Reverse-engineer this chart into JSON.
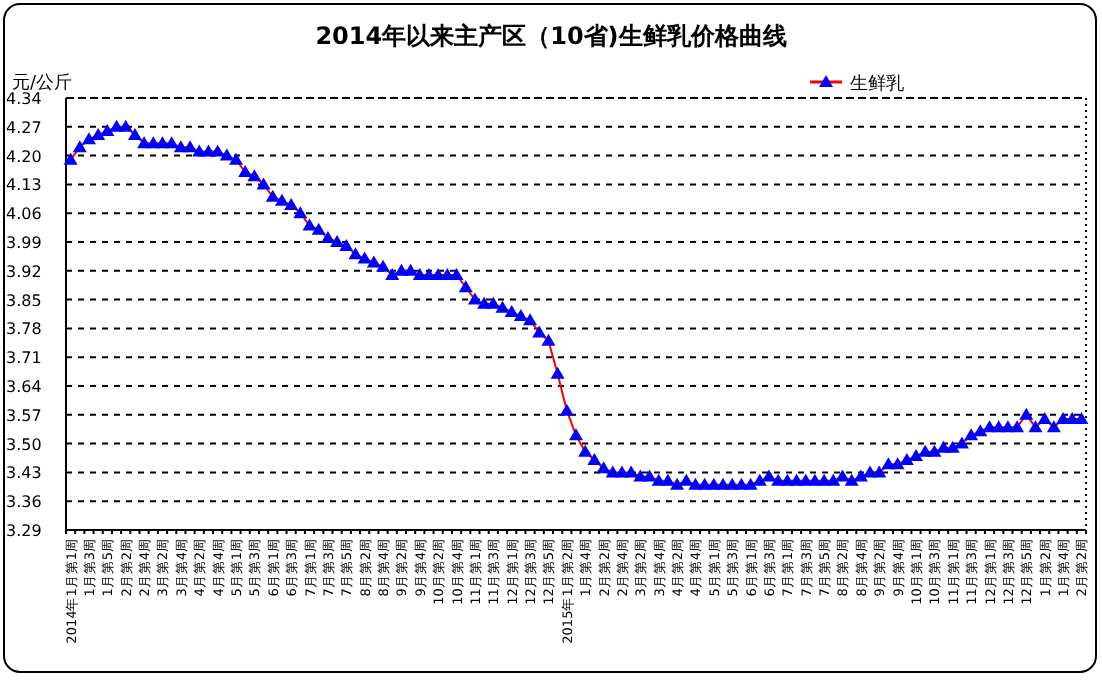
{
  "chart_data": {
    "type": "line",
    "title": "2014年以来主产区（10省)生鲜乳价格曲线",
    "ylabel": "元/公斤",
    "categories": [
      "2014年1月第1周",
      null,
      "1月第3周",
      null,
      "1月第5周",
      null,
      "2月第2周",
      null,
      "2月第4周",
      null,
      "3月第2周",
      null,
      "3月第4周",
      null,
      "4月第2周",
      null,
      "4月第4周",
      null,
      "5月第1周",
      null,
      "5月第3周",
      null,
      "6月第1周",
      null,
      "6月第3周",
      null,
      "7月第1周",
      null,
      "7月第3周",
      null,
      "7月第5周",
      null,
      "8月第2周",
      null,
      "8月第4周",
      null,
      "9月第2周",
      null,
      "9月第4周",
      null,
      "10月第2周",
      null,
      "10月第4周",
      null,
      "11月第1周",
      null,
      "11月第3周",
      null,
      "12月第1周",
      null,
      "12月第3周",
      null,
      "12月第5周",
      null,
      "2015年1月第2周",
      null,
      "1月第4周",
      null,
      "2月第2周",
      null,
      "2月第4周",
      null,
      "3月第2周",
      null,
      "3月第4周",
      null,
      "4月第2周",
      null,
      "4月第4周",
      null,
      "5月第1周",
      null,
      "5月第3周",
      null,
      "6月第1周",
      null,
      "6月第3周",
      null,
      "7月第1周",
      null,
      "7月第3周",
      null,
      "7月第5周",
      null,
      "8月第2周",
      null,
      "8月第4周",
      null,
      "9月第2周",
      null,
      "9月第4周",
      null,
      "10月第1周",
      null,
      "10月第3周",
      null,
      "11月第1周",
      null,
      "11月第3周",
      null,
      "12月第1周",
      null,
      "12月第3周",
      null,
      "12月第5周",
      null,
      "1月第2周",
      null,
      "1月第4周",
      null,
      "2月第2周"
    ],
    "series": [
      {
        "name": "生鲜乳",
        "color": "#0000ff",
        "values": [
          4.19,
          4.22,
          4.24,
          4.25,
          4.26,
          4.27,
          4.27,
          4.25,
          4.23,
          4.23,
          4.23,
          4.23,
          4.22,
          4.22,
          4.21,
          4.21,
          4.21,
          4.2,
          4.19,
          4.16,
          4.15,
          4.13,
          4.1,
          4.09,
          4.08,
          4.06,
          4.03,
          4.02,
          4.0,
          3.99,
          3.98,
          3.96,
          3.95,
          3.94,
          3.93,
          3.91,
          3.92,
          3.92,
          3.91,
          3.91,
          3.91,
          3.91,
          3.91,
          3.88,
          3.85,
          3.84,
          3.84,
          3.83,
          3.82,
          3.81,
          3.8,
          3.77,
          3.75,
          3.67,
          3.58,
          3.52,
          3.48,
          3.46,
          3.44,
          3.43,
          3.43,
          3.43,
          3.42,
          3.42,
          3.41,
          3.41,
          3.4,
          3.41,
          3.4,
          3.4,
          3.4,
          3.4,
          3.4,
          3.4,
          3.4,
          3.41,
          3.42,
          3.41,
          3.41,
          3.41,
          3.41,
          3.41,
          3.41,
          3.41,
          3.42,
          3.41,
          3.42,
          3.43,
          3.43,
          3.45,
          3.45,
          3.46,
          3.47,
          3.48,
          3.48,
          3.49,
          3.49,
          3.5,
          3.52,
          3.53,
          3.54,
          3.54,
          3.54,
          3.54,
          3.57,
          3.54,
          3.56,
          3.54,
          3.56,
          3.56,
          3.56
        ]
      }
    ],
    "ylim": [
      3.29,
      4.34
    ],
    "yticks": [
      3.29,
      3.36,
      3.43,
      {
        "value": 3.5,
        "label": "3.50"
      },
      3.57,
      3.64,
      3.71,
      3.78,
      3.85,
      3.92,
      3.99,
      4.06,
      4.13,
      {
        "value": 4.2,
        "label": "4.20"
      },
      4.27,
      4.34
    ],
    "grid": "y",
    "legend": "top right",
    "marker": "triangle"
  }
}
